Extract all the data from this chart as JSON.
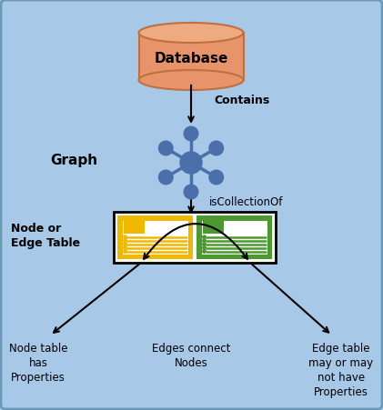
{
  "background_color": "#a8c8e8",
  "border_color": "#6a9ab8",
  "db_color": "#e8946a",
  "db_edge_color": "#c07040",
  "graph_node_color": "#4a6faa",
  "table_yellow": "#f0b800",
  "table_green": "#4a9a30",
  "table_bg": "#ffffff",
  "arrow_color": "#000000",
  "text_color": "#000000",
  "label_db": "Database",
  "label_graph": "Graph",
  "label_node_edge": "Node or\nEdge Table",
  "label_contains": "Contains",
  "label_iscollection": "isCollectionOf",
  "label_node_props": "Node table\nhas\nProperties",
  "label_edges_connect": "Edges connect\nNodes",
  "label_edge_props": "Edge table\nmay or may\nnot have\nProperties",
  "figsize": [
    4.21,
    4.52
  ],
  "dpi": 100
}
